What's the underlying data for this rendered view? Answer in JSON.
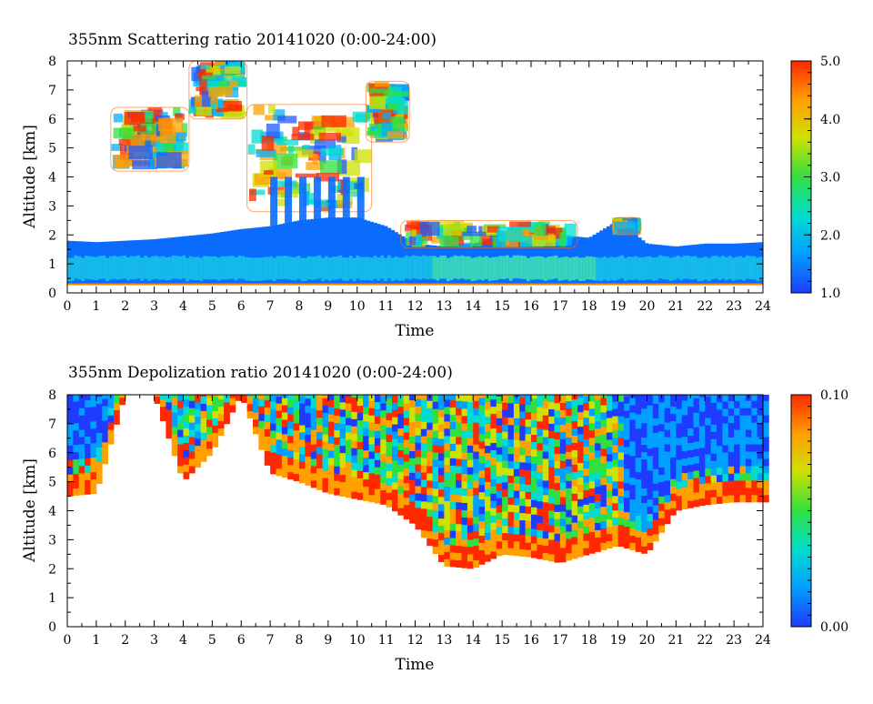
{
  "chart_data": [
    {
      "type": "heatmap",
      "title": "355nm Scattering ratio  20141020 (0:00-24:00)",
      "xlabel": "Time",
      "ylabel": "Altitude [km]",
      "xlim": [
        0,
        24
      ],
      "ylim": [
        0,
        8
      ],
      "x_ticks": [
        "0",
        "1",
        "2",
        "3",
        "4",
        "5",
        "6",
        "7",
        "8",
        "9",
        "10",
        "11",
        "12",
        "13",
        "14",
        "15",
        "16",
        "17",
        "18",
        "19",
        "20",
        "21",
        "22",
        "23",
        "24"
      ],
      "y_ticks": [
        "0",
        "1",
        "2",
        "3",
        "4",
        "5",
        "6",
        "7",
        "8"
      ],
      "colorbar": {
        "min": 1.0,
        "max": 5.0,
        "ticks": [
          "1.0",
          "2.0",
          "3.0",
          "4.0",
          "5.0"
        ]
      },
      "colors": [
        "#1e3cff",
        "#00a0ff",
        "#00dcd0",
        "#30e040",
        "#d0e000",
        "#ffa000",
        "#ff2800"
      ],
      "features": {
        "boundary_layer_top_km": [
          [
            0,
            1.8
          ],
          [
            1,
            1.75
          ],
          [
            2,
            1.8
          ],
          [
            3,
            1.85
          ],
          [
            4,
            1.95
          ],
          [
            5,
            2.05
          ],
          [
            6,
            2.2
          ],
          [
            7,
            2.3
          ],
          [
            8,
            2.5
          ],
          [
            9,
            2.6
          ],
          [
            10,
            2.6
          ],
          [
            11,
            2.3
          ],
          [
            12,
            1.7
          ],
          [
            13,
            1.6
          ],
          [
            14,
            1.7
          ],
          [
            15,
            1.9
          ],
          [
            16,
            1.9
          ],
          [
            17,
            2.0
          ],
          [
            18,
            1.9
          ],
          [
            19,
            2.5
          ],
          [
            20,
            1.7
          ],
          [
            21,
            1.6
          ],
          [
            22,
            1.7
          ],
          [
            23,
            1.7
          ],
          [
            24,
            1.75
          ]
        ],
        "cloud_layers": [
          {
            "x0": 1.5,
            "x1": 4.2,
            "y0": 4.2,
            "y1": 6.4
          },
          {
            "x0": 4.2,
            "x1": 6.2,
            "y0": 6.0,
            "y1": 8.0
          },
          {
            "x0": 6.2,
            "x1": 10.5,
            "y0": 2.8,
            "y1": 6.5
          },
          {
            "x0": 10.3,
            "x1": 11.8,
            "y0": 5.2,
            "y1": 7.3
          },
          {
            "x0": 11.5,
            "x1": 17.6,
            "y0": 1.55,
            "y1": 2.5
          },
          {
            "x0": 18.8,
            "x1": 19.8,
            "y0": 2.0,
            "y1": 2.6
          }
        ]
      }
    },
    {
      "type": "heatmap",
      "title": "355nm Depolization ratio  20141020 (0:00-24:00)",
      "xlabel": "Time",
      "ylabel": "Altitude [km]",
      "xlim": [
        0,
        24
      ],
      "ylim": [
        0,
        8
      ],
      "x_ticks": [
        "0",
        "1",
        "2",
        "3",
        "4",
        "5",
        "6",
        "7",
        "8",
        "9",
        "10",
        "11",
        "12",
        "13",
        "14",
        "15",
        "16",
        "17",
        "18",
        "19",
        "20",
        "21",
        "22",
        "23",
        "24"
      ],
      "y_ticks": [
        "0",
        "1",
        "2",
        "3",
        "4",
        "5",
        "6",
        "7",
        "8"
      ],
      "colorbar": {
        "min": 0.0,
        "max": 0.1,
        "ticks": [
          "0.00",
          "0.10"
        ]
      },
      "colors": [
        "#1e3cff",
        "#00a0ff",
        "#00dcd0",
        "#30e040",
        "#d0e000",
        "#ffa000",
        "#ff2800"
      ],
      "features": {
        "signal_bottom_km": [
          [
            0,
            4.5
          ],
          [
            1,
            4.6
          ],
          [
            2,
            8.0
          ],
          [
            3,
            8.0
          ],
          [
            4,
            5.0
          ],
          [
            5,
            6.0
          ],
          [
            6,
            8.0
          ],
          [
            7,
            5.3
          ],
          [
            8,
            5.0
          ],
          [
            9,
            4.6
          ],
          [
            10,
            4.4
          ],
          [
            11,
            4.2
          ],
          [
            12,
            3.5
          ],
          [
            13,
            2.1
          ],
          [
            14,
            2.0
          ],
          [
            15,
            2.5
          ],
          [
            16,
            2.4
          ],
          [
            17,
            2.2
          ],
          [
            18,
            2.5
          ],
          [
            19,
            2.8
          ],
          [
            20,
            2.5
          ],
          [
            21,
            4.0
          ],
          [
            22,
            4.2
          ],
          [
            23,
            4.3
          ],
          [
            24,
            4.3
          ]
        ]
      }
    }
  ]
}
